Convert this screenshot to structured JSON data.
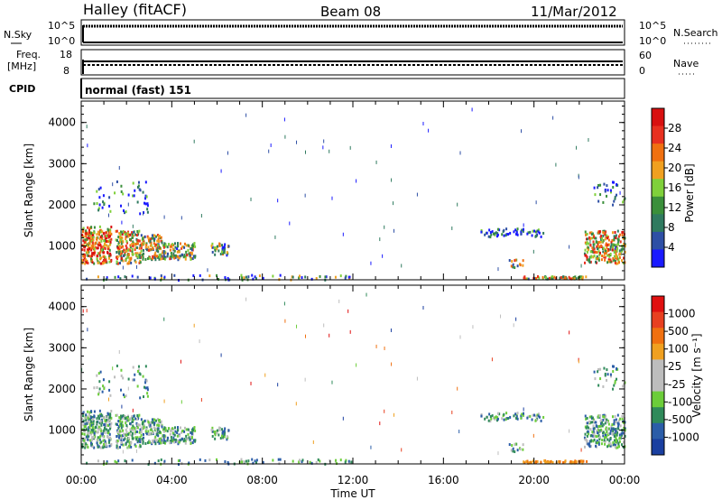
{
  "header": {
    "radar": "Halley (fitACF)",
    "beam": "Beam 08",
    "date": "11/Mar/2012"
  },
  "top_panels": {
    "nsky_label": "N.Sky",
    "nsky_ticks": [
      "10^5",
      "10^0"
    ],
    "nsearch_label": "N.Search",
    "nsearch_ticks": [
      "10^5",
      "10^0"
    ],
    "freq_label_1": "Freq.",
    "freq_label_2": "[MHz]",
    "freq_ticks": [
      "18",
      "8"
    ],
    "nave_label": "Nave",
    "nave_ticks": [
      "60",
      "0"
    ],
    "cpid_label": "CPID",
    "cpid_value": "normal (fast) 151"
  },
  "colors": {
    "power_scale": [
      "#1a1aff",
      "#2e4fa5",
      "#2f7a5f",
      "#3a8f3a",
      "#7fd03a",
      "#f0a020",
      "#f07010",
      "#e83020",
      "#d81010"
    ],
    "velocity_scale": [
      "#1a3fa0",
      "#2b5da8",
      "#2f8a5a",
      "#6ccd3a",
      "#bdbdbd",
      "#bdbdbd",
      "#f0a020",
      "#f07010",
      "#e84020",
      "#e01010"
    ]
  },
  "chart_data": [
    {
      "type": "heatmap",
      "title": "",
      "xlabel": "Time UT",
      "ylabel": "Slant Range [km]",
      "y_ticks": [
        "4000",
        "3000",
        "2000",
        "1000"
      ],
      "ylim": [
        180,
        4520
      ],
      "xlim": [
        "00:00",
        "24:00"
      ],
      "x_ticks": [
        "00:00",
        "04:00",
        "08:00",
        "12:00",
        "16:00",
        "20:00",
        "00:00"
      ],
      "colorbar_label": "Power [dB]",
      "colorbar_ticks": [
        "28",
        "24",
        "20",
        "16",
        "12",
        "8",
        "4"
      ],
      "colorbar_range": [
        0,
        32
      ]
    },
    {
      "type": "heatmap",
      "title": "",
      "xlabel": "Time UT",
      "ylabel": "Slant Range [km]",
      "y_ticks": [
        "4000",
        "3000",
        "2000",
        "1000"
      ],
      "ylim": [
        180,
        4520
      ],
      "xlim": [
        "00:00",
        "24:00"
      ],
      "x_ticks": [
        "00:00",
        "04:00",
        "08:00",
        "12:00",
        "16:00",
        "20:00",
        "00:00"
      ],
      "colorbar_label": "Velocity [m s⁻¹]",
      "colorbar_ticks": [
        "1000",
        "500",
        "100",
        "25",
        "-25",
        "-100",
        "-500",
        "-1000"
      ]
    }
  ]
}
